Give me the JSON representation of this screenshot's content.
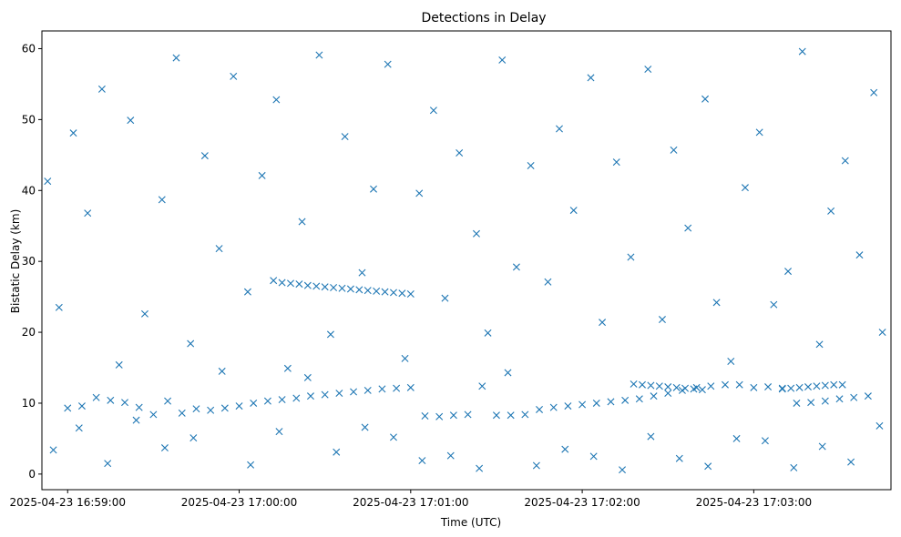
{
  "chart_data": {
    "type": "scatter",
    "title": "Detections in Delay",
    "xlabel": "Time (UTC)",
    "ylabel": "Bistatic Delay (km)",
    "x_axis_kind": "time",
    "x_ticks": [
      "2025-04-23 16:59:00",
      "2025-04-23 17:00:00",
      "2025-04-23 17:01:00",
      "2025-04-23 17:02:00",
      "2025-04-23 17:03:00"
    ],
    "y_ticks": [
      0,
      10,
      20,
      30,
      40,
      50,
      60
    ],
    "xlim": [
      "2025-04-23 16:58:51",
      "2025-04-23 17:03:48"
    ],
    "ylim": [
      -2.2,
      62.5
    ],
    "grid": false,
    "marker": "x",
    "color": "#1f77b4",
    "series": [
      {
        "name": "",
        "x": [
          "2025-04-23 16:59:00",
          "2025-04-23 16:59:05",
          "2025-04-23 16:59:10",
          "2025-04-23 16:59:15",
          "2025-04-23 16:59:20",
          "2025-04-23 16:59:25",
          "2025-04-23 16:59:30",
          "2025-04-23 16:59:35",
          "2025-04-23 16:59:40",
          "2025-04-23 16:59:45",
          "2025-04-23 16:59:50",
          "2025-04-23 16:59:55",
          "2025-04-23 17:00:00",
          "2025-04-23 17:00:05",
          "2025-04-23 17:00:10",
          "2025-04-23 17:00:15",
          "2025-04-23 17:00:20",
          "2025-04-23 17:00:25",
          "2025-04-23 17:00:30",
          "2025-04-23 17:00:35",
          "2025-04-23 17:00:40",
          "2025-04-23 17:00:45",
          "2025-04-23 17:00:50",
          "2025-04-23 17:00:55",
          "2025-04-23 17:01:00",
          "2025-04-23 17:01:05",
          "2025-04-23 17:01:10",
          "2025-04-23 17:01:15",
          "2025-04-23 17:01:20",
          "2025-04-23 17:01:25",
          "2025-04-23 17:01:30",
          "2025-04-23 17:01:35",
          "2025-04-23 17:01:40",
          "2025-04-23 17:01:45",
          "2025-04-23 17:01:50",
          "2025-04-23 17:01:55",
          "2025-04-23 17:02:00",
          "2025-04-23 17:02:05",
          "2025-04-23 17:02:10",
          "2025-04-23 17:02:15",
          "2025-04-23 17:02:20",
          "2025-04-23 17:02:25",
          "2025-04-23 17:02:30",
          "2025-04-23 17:02:35",
          "2025-04-23 17:02:40",
          "2025-04-23 17:02:45",
          "2025-04-23 17:02:50",
          "2025-04-23 17:02:55",
          "2025-04-23 17:03:00",
          "2025-04-23 17:03:05",
          "2025-04-23 17:03:10",
          "2025-04-23 17:03:15",
          "2025-04-23 17:03:20",
          "2025-04-23 17:03:25",
          "2025-04-23 17:03:30",
          "2025-04-23 17:03:35",
          "2025-04-23 17:03:40",
          "2025-04-23 17:00:12",
          "2025-04-23 17:00:15",
          "2025-04-23 17:00:18",
          "2025-04-23 17:00:21",
          "2025-04-23 17:00:24",
          "2025-04-23 17:00:27",
          "2025-04-23 17:00:30",
          "2025-04-23 17:00:33",
          "2025-04-23 17:00:36",
          "2025-04-23 17:00:39",
          "2025-04-23 17:00:42",
          "2025-04-23 17:00:45",
          "2025-04-23 17:00:48",
          "2025-04-23 17:00:51",
          "2025-04-23 17:00:54",
          "2025-04-23 17:00:57",
          "2025-04-23 17:01:00",
          "2025-04-23 17:02:18",
          "2025-04-23 17:02:21",
          "2025-04-23 17:02:24",
          "2025-04-23 17:02:27",
          "2025-04-23 17:02:30",
          "2025-04-23 17:02:33",
          "2025-04-23 17:02:36",
          "2025-04-23 17:02:39",
          "2025-04-23 17:02:42",
          "2025-04-23 17:03:10",
          "2025-04-23 17:03:13",
          "2025-04-23 17:03:16",
          "2025-04-23 17:03:19",
          "2025-04-23 17:03:22",
          "2025-04-23 17:03:25",
          "2025-04-23 17:03:28",
          "2025-04-23 17:03:31",
          "2025-04-23 16:58:53",
          "2025-04-23 16:58:57",
          "2025-04-23 16:59:02",
          "2025-04-23 16:59:07",
          "2025-04-23 16:59:12",
          "2025-04-23 16:59:18",
          "2025-04-23 16:59:22",
          "2025-04-23 16:59:27",
          "2025-04-23 16:59:33",
          "2025-04-23 16:59:38",
          "2025-04-23 16:59:43",
          "2025-04-23 16:59:48",
          "2025-04-23 16:59:53",
          "2025-04-23 16:59:58",
          "2025-04-23 17:00:03",
          "2025-04-23 17:00:08",
          "2025-04-23 17:00:13",
          "2025-04-23 17:00:17",
          "2025-04-23 17:00:22",
          "2025-04-23 17:00:28",
          "2025-04-23 17:00:32",
          "2025-04-23 17:00:37",
          "2025-04-23 17:00:43",
          "2025-04-23 17:00:47",
          "2025-04-23 17:00:52",
          "2025-04-23 17:00:58",
          "2025-04-23 17:01:03",
          "2025-04-23 17:01:08",
          "2025-04-23 17:01:12",
          "2025-04-23 17:01:17",
          "2025-04-23 17:01:23",
          "2025-04-23 17:01:27",
          "2025-04-23 17:01:32",
          "2025-04-23 17:01:37",
          "2025-04-23 17:01:42",
          "2025-04-23 17:01:48",
          "2025-04-23 17:01:52",
          "2025-04-23 17:01:57",
          "2025-04-23 17:02:03",
          "2025-04-23 17:02:07",
          "2025-04-23 17:02:12",
          "2025-04-23 17:02:17",
          "2025-04-23 17:02:23",
          "2025-04-23 17:02:28",
          "2025-04-23 17:02:32",
          "2025-04-23 17:02:37",
          "2025-04-23 17:02:43",
          "2025-04-23 17:02:47",
          "2025-04-23 17:02:52",
          "2025-04-23 17:02:57",
          "2025-04-23 17:03:02",
          "2025-04-23 17:03:07",
          "2025-04-23 17:03:12",
          "2025-04-23 17:03:17",
          "2025-04-23 17:03:23",
          "2025-04-23 17:03:27",
          "2025-04-23 17:03:32",
          "2025-04-23 17:03:37",
          "2025-04-23 17:03:42",
          "2025-04-23 17:03:45",
          "2025-04-23 16:58:55",
          "2025-04-23 16:59:04",
          "2025-04-23 16:59:14",
          "2025-04-23 16:59:24",
          "2025-04-23 16:59:34",
          "2025-04-23 16:59:44",
          "2025-04-23 16:59:54",
          "2025-04-23 17:00:04",
          "2025-04-23 17:00:14",
          "2025-04-23 17:00:24",
          "2025-04-23 17:00:34",
          "2025-04-23 17:00:44",
          "2025-04-23 17:00:54",
          "2025-04-23 17:01:04",
          "2025-04-23 17:01:14",
          "2025-04-23 17:01:24",
          "2025-04-23 17:01:34",
          "2025-04-23 17:01:44",
          "2025-04-23 17:01:54",
          "2025-04-23 17:02:04",
          "2025-04-23 17:02:14",
          "2025-04-23 17:02:24",
          "2025-04-23 17:02:34",
          "2025-04-23 17:02:44",
          "2025-04-23 17:02:54",
          "2025-04-23 17:03:04",
          "2025-04-23 17:03:14",
          "2025-04-23 17:03:24",
          "2025-04-23 17:03:34",
          "2025-04-23 17:03:44"
        ],
        "y": [
          9.3,
          9.6,
          10.8,
          10.4,
          10.1,
          9.4,
          8.4,
          10.3,
          8.6,
          9.2,
          9.0,
          9.3,
          9.6,
          10.0,
          10.3,
          10.5,
          10.7,
          11.0,
          11.2,
          11.4,
          11.6,
          11.8,
          12.0,
          12.1,
          12.2,
          8.2,
          8.1,
          8.3,
          8.4,
          12.4,
          8.3,
          8.3,
          8.4,
          9.1,
          9.4,
          9.6,
          9.8,
          10.0,
          10.2,
          10.4,
          10.6,
          11.0,
          11.4,
          11.8,
          12.2,
          12.4,
          12.6,
          12.6,
          12.2,
          12.3,
          12.1,
          10.0,
          10.1,
          10.3,
          10.6,
          10.8,
          11.0,
          27.3,
          27.0,
          26.9,
          26.8,
          26.6,
          26.5,
          26.4,
          26.3,
          26.2,
          26.1,
          26.0,
          25.9,
          25.8,
          25.7,
          25.6,
          25.5,
          25.4,
          12.7,
          12.6,
          12.5,
          12.4,
          12.3,
          12.2,
          12.1,
          12.0,
          11.9,
          12.0,
          12.1,
          12.2,
          12.3,
          12.4,
          12.5,
          12.6,
          12.6,
          41.3,
          23.5,
          48.1,
          36.8,
          54.3,
          15.4,
          49.9,
          22.6,
          38.7,
          58.7,
          18.4,
          44.9,
          31.8,
          56.1,
          25.7,
          42.1,
          52.8,
          14.9,
          35.6,
          59.1,
          19.7,
          47.6,
          28.4,
          40.2,
          57.8,
          16.3,
          39.6,
          51.3,
          24.8,
          45.3,
          33.9,
          19.9,
          58.4,
          29.2,
          43.5,
          27.1,
          48.7,
          37.2,
          55.9,
          21.4,
          44.0,
          30.6,
          57.1,
          21.8,
          45.7,
          34.7,
          52.9,
          24.2,
          15.9,
          40.4,
          48.2,
          23.9,
          28.6,
          59.6,
          18.3,
          37.1,
          44.2,
          30.9,
          53.8,
          20.0,
          3.4,
          6.5,
          1.5,
          7.6,
          3.7,
          5.1,
          14.5,
          1.3,
          6.0,
          13.6,
          3.1,
          6.6,
          5.2,
          1.9,
          2.6,
          0.8,
          14.3,
          1.2,
          3.5,
          2.5,
          0.6,
          5.3,
          2.2,
          1.1,
          5.0,
          4.7,
          0.9,
          3.9,
          1.7,
          6.8
        ]
      }
    ]
  }
}
